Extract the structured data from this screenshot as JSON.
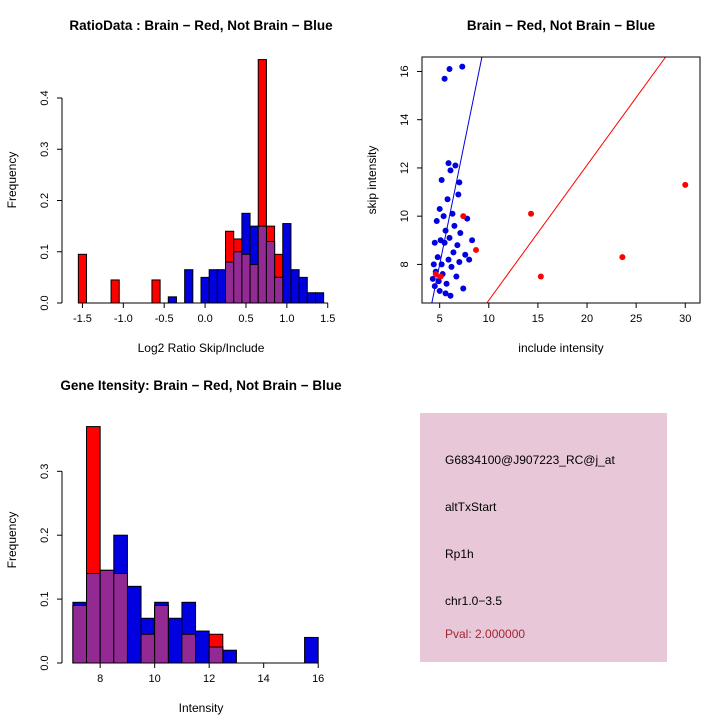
{
  "colors": {
    "red": "#FF0000",
    "blue": "#0000E0",
    "overlap": "#932A93",
    "axis": "#000000",
    "info_bg": "#E8C7D9",
    "pval_red": "#A12830"
  },
  "chart_data": [
    {
      "id": "ratio_hist",
      "type": "bar",
      "title": "RatioData : Brain − Red, Not Brain − Blue",
      "xlabel": "Log2 Ratio Skip/Include",
      "ylabel": "Frequency",
      "xlim": [
        -1.75,
        1.65
      ],
      "ylim": [
        0,
        0.48
      ],
      "xticks": [
        [
          -1.5,
          "-1.5"
        ],
        [
          -1.0,
          "-1.0"
        ],
        [
          -0.5,
          "-0.5"
        ],
        [
          0.0,
          "0.0"
        ],
        [
          0.5,
          "0.5"
        ],
        [
          1.0,
          "1.0"
        ],
        [
          1.5,
          "1.5"
        ]
      ],
      "yticks": [
        [
          0.0,
          "0.0"
        ],
        [
          0.1,
          "0.1"
        ],
        [
          0.2,
          "0.2"
        ],
        [
          0.3,
          "0.3"
        ],
        [
          0.4,
          "0.4"
        ]
      ],
      "bin_width": 0.1,
      "legend": "grid off, overlapping translucent histograms",
      "series": [
        {
          "name": "Brain (red)",
          "color_key": "red",
          "bins": [
            {
              "x": -1.55,
              "h": 0.095
            },
            {
              "x": -1.15,
              "h": 0.045
            },
            {
              "x": -0.65,
              "h": 0.045
            },
            {
              "x": 0.25,
              "h": 0.14
            },
            {
              "x": 0.35,
              "h": 0.125
            },
            {
              "x": 0.45,
              "h": 0.095
            },
            {
              "x": 0.55,
              "h": 0.075
            },
            {
              "x": 0.65,
              "h": 0.475
            },
            {
              "x": 0.75,
              "h": 0.15
            },
            {
              "x": 0.85,
              "h": 0.095
            }
          ]
        },
        {
          "name": "Not Brain (blue)",
          "color_key": "blue",
          "bins": [
            {
              "x": -0.45,
              "h": 0.012
            },
            {
              "x": -0.25,
              "h": 0.065
            },
            {
              "x": -0.05,
              "h": 0.05
            },
            {
              "x": 0.05,
              "h": 0.065
            },
            {
              "x": 0.15,
              "h": 0.065
            },
            {
              "x": 0.25,
              "h": 0.08
            },
            {
              "x": 0.35,
              "h": 0.1
            },
            {
              "x": 0.45,
              "h": 0.175
            },
            {
              "x": 0.55,
              "h": 0.15
            },
            {
              "x": 0.65,
              "h": 0.15
            },
            {
              "x": 0.75,
              "h": 0.12
            },
            {
              "x": 0.85,
              "h": 0.05
            },
            {
              "x": 0.95,
              "h": 0.155
            },
            {
              "x": 1.05,
              "h": 0.065
            },
            {
              "x": 1.15,
              "h": 0.05
            },
            {
              "x": 1.25,
              "h": 0.02
            },
            {
              "x": 1.35,
              "h": 0.02
            }
          ]
        }
      ]
    },
    {
      "id": "scatter",
      "type": "scatter",
      "title": "Brain − Red, Not Brain − Blue",
      "xlabel": "include intensity",
      "ylabel": "skip intensity",
      "xlim": [
        3.2,
        31.5
      ],
      "ylim": [
        6.4,
        16.6
      ],
      "xticks": [
        [
          5,
          "5"
        ],
        [
          10,
          "10"
        ],
        [
          15,
          "15"
        ],
        [
          20,
          "20"
        ],
        [
          25,
          "25"
        ],
        [
          30,
          "30"
        ]
      ],
      "yticks": [
        [
          8,
          "8"
        ],
        [
          10,
          "10"
        ],
        [
          12,
          "12"
        ],
        [
          14,
          "14"
        ],
        [
          16,
          "16"
        ]
      ],
      "legend": "full box frame, two diagonal reference lines",
      "series": [
        {
          "name": "Not Brain (blue)",
          "color_key": "blue",
          "points": [
            [
              4.3,
              7.4
            ],
            [
              4.4,
              8.0
            ],
            [
              4.5,
              7.1
            ],
            [
              4.5,
              8.9
            ],
            [
              4.6,
              7.7
            ],
            [
              4.7,
              9.8
            ],
            [
              4.8,
              8.3
            ],
            [
              4.9,
              7.3
            ],
            [
              5.0,
              10.3
            ],
            [
              5.0,
              6.9
            ],
            [
              5.1,
              9.0
            ],
            [
              5.2,
              11.5
            ],
            [
              5.2,
              8.0
            ],
            [
              5.3,
              7.6
            ],
            [
              5.4,
              10.0
            ],
            [
              5.5,
              15.7
            ],
            [
              5.5,
              8.9
            ],
            [
              5.6,
              9.4
            ],
            [
              5.7,
              7.2
            ],
            [
              5.8,
              10.7
            ],
            [
              5.9,
              8.2
            ],
            [
              5.9,
              12.2
            ],
            [
              6.0,
              16.1
            ],
            [
              6.0,
              9.1
            ],
            [
              6.1,
              11.9
            ],
            [
              6.2,
              7.9
            ],
            [
              6.3,
              10.1
            ],
            [
              6.4,
              8.5
            ],
            [
              6.5,
              9.6
            ],
            [
              6.6,
              12.1
            ],
            [
              6.7,
              7.5
            ],
            [
              6.8,
              8.8
            ],
            [
              6.9,
              10.9
            ],
            [
              7.0,
              8.1
            ],
            [
              7.0,
              11.4
            ],
            [
              7.1,
              9.3
            ],
            [
              7.3,
              16.2
            ],
            [
              7.4,
              7.0
            ],
            [
              7.6,
              8.4
            ],
            [
              7.8,
              9.9
            ],
            [
              8.0,
              8.2
            ],
            [
              8.3,
              9.0
            ],
            [
              5.6,
              6.8
            ],
            [
              6.1,
              6.7
            ]
          ]
        },
        {
          "name": "Brain (red)",
          "color_key": "red",
          "points": [
            [
              4.6,
              7.6
            ],
            [
              5.1,
              7.5
            ],
            [
              7.4,
              10.0
            ],
            [
              8.7,
              8.6
            ],
            [
              14.3,
              10.1
            ],
            [
              15.3,
              7.5
            ],
            [
              23.6,
              8.3
            ],
            [
              30.0,
              11.3
            ]
          ]
        }
      ],
      "lines": [
        {
          "color_key": "blue",
          "x1": 4.2,
          "y1": 6.4,
          "x2": 9.3,
          "y2": 16.6
        },
        {
          "color_key": "red",
          "x1": 9.8,
          "y1": 6.4,
          "x2": 28.0,
          "y2": 16.6
        }
      ]
    },
    {
      "id": "gene_hist",
      "type": "bar",
      "title": "Gene Itensity: Brain − Red, Not Brain − Blue",
      "xlabel": "Intensity",
      "ylabel": "Frequency",
      "xlim": [
        6.6,
        16.8
      ],
      "ylim": [
        0,
        0.385
      ],
      "xticks": [
        [
          8,
          "8"
        ],
        [
          10,
          "10"
        ],
        [
          12,
          "12"
        ],
        [
          14,
          "14"
        ],
        [
          16,
          "16"
        ]
      ],
      "yticks": [
        [
          0.0,
          "0.0"
        ],
        [
          0.1,
          "0.1"
        ],
        [
          0.2,
          "0.2"
        ],
        [
          0.3,
          "0.3"
        ]
      ],
      "bin_width": 0.5,
      "legend": "grid off, overlapping translucent histograms",
      "series": [
        {
          "name": "Brain (red)",
          "color_key": "red",
          "bins": [
            {
              "x": 7.0,
              "h": 0.09
            },
            {
              "x": 7.5,
              "h": 0.37
            },
            {
              "x": 8.0,
              "h": 0.145
            },
            {
              "x": 8.5,
              "h": 0.14
            },
            {
              "x": 9.5,
              "h": 0.045
            },
            {
              "x": 10.0,
              "h": 0.09
            },
            {
              "x": 11.0,
              "h": 0.045
            },
            {
              "x": 12.0,
              "h": 0.045
            }
          ]
        },
        {
          "name": "Not Brain (blue)",
          "color_key": "blue",
          "bins": [
            {
              "x": 7.0,
              "h": 0.095
            },
            {
              "x": 7.5,
              "h": 0.14
            },
            {
              "x": 8.0,
              "h": 0.145
            },
            {
              "x": 8.5,
              "h": 0.2
            },
            {
              "x": 9.0,
              "h": 0.12
            },
            {
              "x": 9.5,
              "h": 0.07
            },
            {
              "x": 10.0,
              "h": 0.095
            },
            {
              "x": 10.5,
              "h": 0.07
            },
            {
              "x": 11.0,
              "h": 0.095
            },
            {
              "x": 11.5,
              "h": 0.05
            },
            {
              "x": 12.0,
              "h": 0.025
            },
            {
              "x": 12.5,
              "h": 0.02
            },
            {
              "x": 15.5,
              "h": 0.04
            }
          ]
        }
      ]
    }
  ],
  "info_box": {
    "lines": [
      {
        "text": "G6834100@J907223_RC@j_at",
        "color": "#000000"
      },
      {
        "text": "altTxStart",
        "color": "#000000"
      },
      {
        "text": "Rp1h",
        "color": "#000000"
      },
      {
        "text": "chr1.0−3.5",
        "color": "#000000"
      },
      {
        "text": "Pval: 2.000000",
        "color": "#A12830"
      }
    ]
  }
}
